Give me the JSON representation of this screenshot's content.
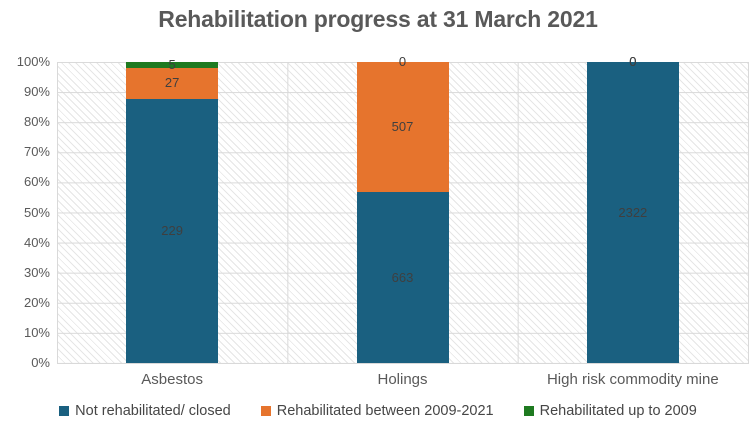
{
  "title": "Rehabilitation progress at 31 March 2021",
  "colors": {
    "blue": "#1A6080",
    "orange": "#E6742D",
    "green": "#1E7A20",
    "grid": "#D9D9D9",
    "title_text": "#595959",
    "axis_text": "#595959",
    "data_label_text": "#3F3F3F"
  },
  "chart_data": {
    "type": "bar",
    "subtype": "100-percent-stacked-column",
    "title": "Rehabilitation progress at 31 March 2021",
    "categories": [
      "Asbestos",
      "Holings",
      "High risk commodity mine"
    ],
    "series": [
      {
        "name": "Not rehabilitated/ closed",
        "color_key": "blue",
        "values": [
          229,
          663,
          2322
        ]
      },
      {
        "name": "Rehabilitated between 2009-2021",
        "color_key": "orange",
        "values": [
          27,
          507,
          0
        ]
      },
      {
        "name": "Rehabilitated up to 2009",
        "color_key": "green",
        "values": [
          5,
          0,
          0
        ]
      }
    ],
    "y_ticks": [
      "100%",
      "90%",
      "80%",
      "70%",
      "60%",
      "50%",
      "40%",
      "30%",
      "20%",
      "10%",
      "0%"
    ],
    "ylim": [
      0,
      100
    ],
    "xlabel": "",
    "ylabel": "",
    "grid": true,
    "plot_pattern": "light-diagonal-hatch",
    "legend_position": "bottom",
    "data_labels": true
  }
}
